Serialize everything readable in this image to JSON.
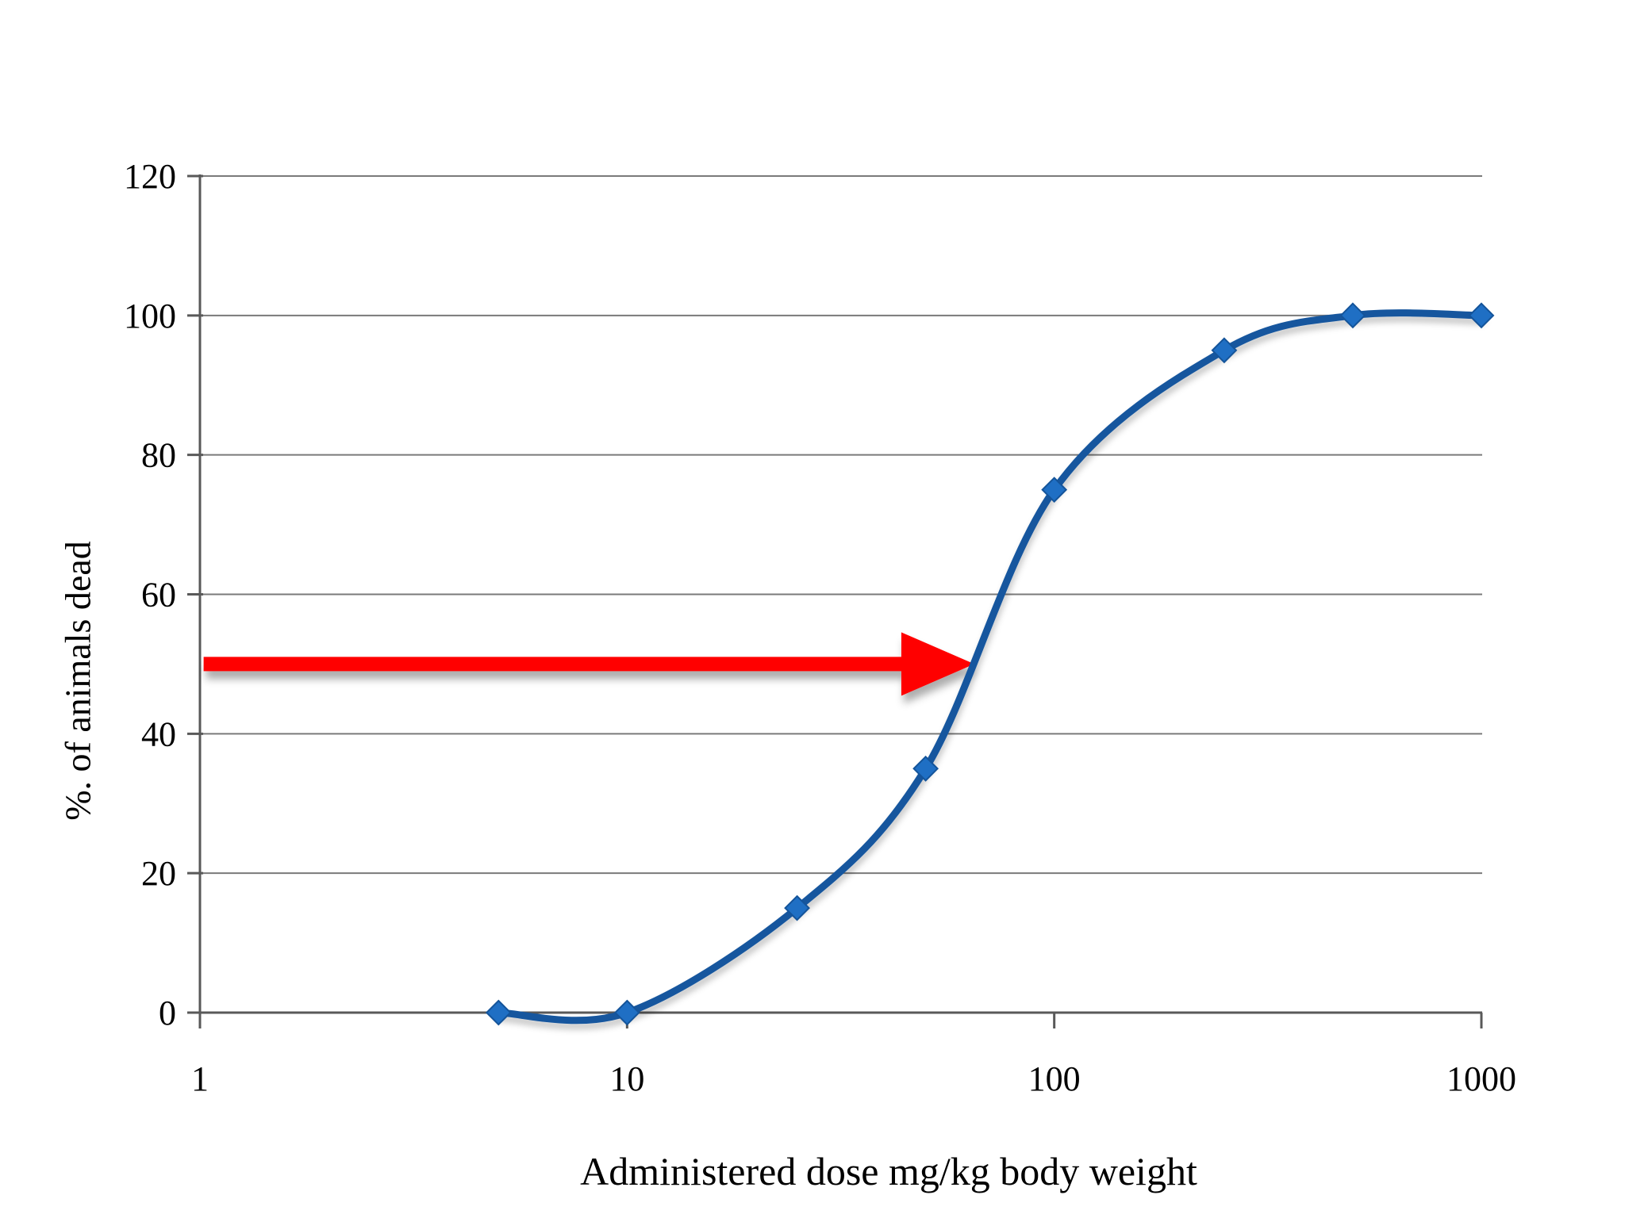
{
  "chart_data": {
    "type": "line",
    "xlabel": "Administered dose mg/kg body weight",
    "ylabel": "%. of animals dead",
    "x_scale": "log",
    "x": [
      5,
      10,
      25,
      50,
      100,
      250,
      500,
      1000
    ],
    "series": [
      {
        "name": "% of animals dead",
        "values": [
          0,
          0,
          15,
          35,
          75,
          95,
          100,
          100
        ]
      }
    ],
    "xlim": [
      1,
      1000
    ],
    "ylim": [
      0,
      120
    ],
    "xticks": [
      "1",
      "10",
      "100",
      "1000"
    ],
    "yticks": [
      "0",
      "20",
      "40",
      "60",
      "80",
      "100",
      "120"
    ],
    "grid": "horizontal",
    "legend": "none",
    "marker": "diamond",
    "annotation": {
      "shape": "arrow",
      "direction": "right",
      "y_percent": 50,
      "x_start_dose": 1.02,
      "x_tip_dose": 65,
      "color": "#FF0000"
    },
    "colors": {
      "line": "#17579E",
      "marker": "#1F6FC4",
      "marker_edge": "#14549A",
      "grid": "#7A7A7A",
      "axis": "#595959",
      "arrow": "#FF0000",
      "text": "#000000",
      "background": "#FFFFFF"
    }
  }
}
